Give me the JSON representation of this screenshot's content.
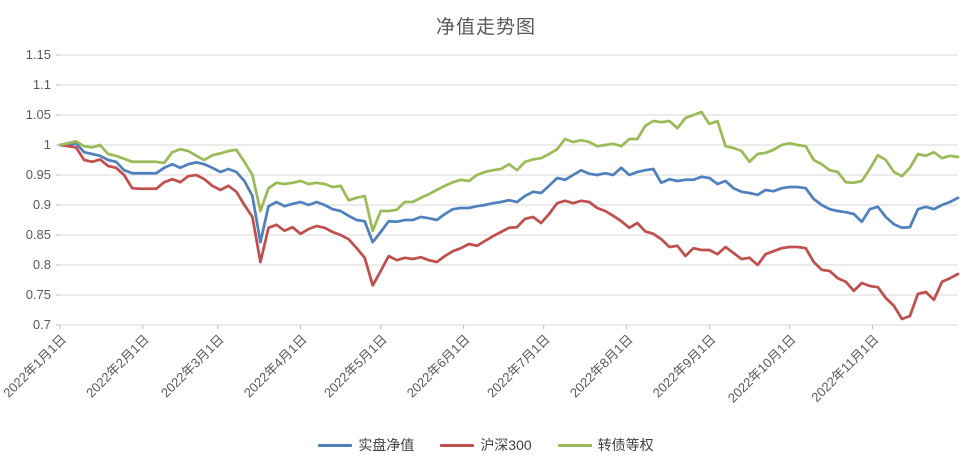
{
  "title": "净值走势图",
  "styles": {
    "background": "#FFFFFF",
    "grid_color": "#D9D9D9",
    "tick_color": "#BFBFBF",
    "axis_label_color": "#595959",
    "title_color": "#595959",
    "legend_text_color": "#404040"
  },
  "chart_data": {
    "type": "line",
    "title": "净值走势图",
    "xlabel": "",
    "ylabel": "",
    "grid": true,
    "legend_position": "bottom",
    "ylim": [
      0.7,
      1.15
    ],
    "y_ticks": [
      1.15,
      1.1,
      1.05,
      1,
      0.95,
      0.9,
      0.85,
      0.8,
      0.75,
      0.7
    ],
    "y_tick_labels": [
      "1.15",
      "1.1",
      "1.05",
      "1",
      "0.95",
      "0.9",
      "0.85",
      "0.8",
      "0.75",
      "0.7"
    ],
    "x_unit": "days since 2022-01-01",
    "xlim_days": [
      0,
      336
    ],
    "x_tick_days": [
      0,
      31,
      59,
      90,
      120,
      151,
      181,
      212,
      243,
      273,
      304
    ],
    "x_tick_labels": [
      "2022年1月1日",
      "2022年2月1日",
      "2022年3月1日",
      "2022年4月1日",
      "2022年5月1日",
      "2022年6月1日",
      "2022年7月1日",
      "2022年8月1日",
      "2022年9月1日",
      "2022年10月1日",
      "2022年11月1日"
    ],
    "x_days": [
      0,
      3,
      6,
      9,
      12,
      15,
      18,
      21,
      24,
      27,
      30,
      33,
      36,
      39,
      42,
      45,
      48,
      51,
      54,
      57,
      60,
      63,
      66,
      69,
      72,
      75,
      78,
      81,
      84,
      87,
      90,
      93,
      96,
      99,
      102,
      105,
      108,
      111,
      114,
      117,
      120,
      123,
      126,
      129,
      132,
      135,
      138,
      141,
      144,
      147,
      150,
      153,
      156,
      159,
      162,
      165,
      168,
      171,
      174,
      177,
      180,
      183,
      186,
      189,
      192,
      195,
      198,
      201,
      204,
      207,
      210,
      213,
      216,
      219,
      222,
      225,
      228,
      231,
      234,
      237,
      240,
      243,
      246,
      249,
      252,
      255,
      258,
      261,
      264,
      267,
      270,
      273,
      276,
      279,
      282,
      285,
      288,
      291,
      294,
      297,
      300,
      303,
      306,
      309,
      312,
      315,
      318,
      321,
      324,
      327,
      330,
      333,
      336
    ],
    "series": [
      {
        "name": "实盘净值",
        "color": "#4F81BD",
        "values": [
          1.0,
          1.0,
          1.003,
          0.988,
          0.985,
          0.982,
          0.975,
          0.972,
          0.958,
          0.953,
          0.953,
          0.953,
          0.953,
          0.962,
          0.968,
          0.962,
          0.968,
          0.971,
          0.968,
          0.962,
          0.955,
          0.96,
          0.955,
          0.94,
          0.915,
          0.838,
          0.898,
          0.905,
          0.898,
          0.902,
          0.905,
          0.9,
          0.905,
          0.9,
          0.893,
          0.89,
          0.882,
          0.875,
          0.873,
          0.838,
          0.855,
          0.873,
          0.872,
          0.875,
          0.875,
          0.88,
          0.878,
          0.875,
          0.885,
          0.893,
          0.895,
          0.895,
          0.898,
          0.9,
          0.903,
          0.905,
          0.908,
          0.905,
          0.915,
          0.922,
          0.92,
          0.932,
          0.945,
          0.942,
          0.95,
          0.958,
          0.952,
          0.95,
          0.953,
          0.95,
          0.962,
          0.95,
          0.955,
          0.958,
          0.96,
          0.937,
          0.943,
          0.94,
          0.942,
          0.942,
          0.947,
          0.945,
          0.935,
          0.94,
          0.928,
          0.922,
          0.92,
          0.917,
          0.925,
          0.923,
          0.928,
          0.93,
          0.93,
          0.928,
          0.91,
          0.9,
          0.893,
          0.89,
          0.888,
          0.885,
          0.872,
          0.893,
          0.897,
          0.88,
          0.868,
          0.862,
          0.863,
          0.893,
          0.897,
          0.893,
          0.9,
          0.905,
          0.912
        ]
      },
      {
        "name": "沪深300",
        "color": "#C0504D",
        "values": [
          1.0,
          0.998,
          0.996,
          0.975,
          0.972,
          0.976,
          0.965,
          0.962,
          0.95,
          0.928,
          0.927,
          0.927,
          0.927,
          0.938,
          0.943,
          0.938,
          0.948,
          0.95,
          0.943,
          0.932,
          0.925,
          0.932,
          0.922,
          0.9,
          0.88,
          0.805,
          0.862,
          0.867,
          0.857,
          0.863,
          0.852,
          0.86,
          0.865,
          0.862,
          0.855,
          0.85,
          0.843,
          0.828,
          0.812,
          0.766,
          0.79,
          0.815,
          0.808,
          0.812,
          0.81,
          0.813,
          0.808,
          0.805,
          0.815,
          0.823,
          0.828,
          0.835,
          0.832,
          0.84,
          0.848,
          0.855,
          0.862,
          0.863,
          0.877,
          0.88,
          0.87,
          0.885,
          0.903,
          0.907,
          0.903,
          0.907,
          0.905,
          0.895,
          0.89,
          0.882,
          0.873,
          0.862,
          0.87,
          0.856,
          0.852,
          0.843,
          0.83,
          0.832,
          0.815,
          0.828,
          0.825,
          0.825,
          0.818,
          0.83,
          0.82,
          0.81,
          0.812,
          0.8,
          0.818,
          0.823,
          0.828,
          0.83,
          0.83,
          0.828,
          0.805,
          0.792,
          0.79,
          0.778,
          0.772,
          0.757,
          0.77,
          0.765,
          0.763,
          0.745,
          0.732,
          0.71,
          0.715,
          0.752,
          0.755,
          0.742,
          0.772,
          0.778,
          0.785
        ]
      },
      {
        "name": "转债等权",
        "color": "#9BBB59",
        "values": [
          1.0,
          1.003,
          1.006,
          0.998,
          0.996,
          1.0,
          0.985,
          0.982,
          0.977,
          0.972,
          0.972,
          0.972,
          0.972,
          0.97,
          0.988,
          0.993,
          0.99,
          0.982,
          0.975,
          0.983,
          0.986,
          0.99,
          0.992,
          0.972,
          0.95,
          0.89,
          0.928,
          0.937,
          0.935,
          0.937,
          0.94,
          0.935,
          0.937,
          0.935,
          0.93,
          0.932,
          0.908,
          0.912,
          0.915,
          0.857,
          0.89,
          0.89,
          0.892,
          0.905,
          0.905,
          0.912,
          0.918,
          0.925,
          0.932,
          0.938,
          0.942,
          0.94,
          0.95,
          0.955,
          0.958,
          0.96,
          0.968,
          0.958,
          0.972,
          0.976,
          0.978,
          0.985,
          0.993,
          1.01,
          1.005,
          1.008,
          1.005,
          0.998,
          1.0,
          1.002,
          0.998,
          1.01,
          1.01,
          1.032,
          1.04,
          1.038,
          1.04,
          1.028,
          1.045,
          1.05,
          1.055,
          1.035,
          1.04,
          0.998,
          0.995,
          0.99,
          0.972,
          0.985,
          0.987,
          0.992,
          1.0,
          1.003,
          1.0,
          0.998,
          0.975,
          0.968,
          0.958,
          0.955,
          0.938,
          0.937,
          0.94,
          0.96,
          0.983,
          0.975,
          0.955,
          0.948,
          0.962,
          0.985,
          0.982,
          0.988,
          0.978,
          0.982,
          0.98
        ]
      }
    ]
  }
}
